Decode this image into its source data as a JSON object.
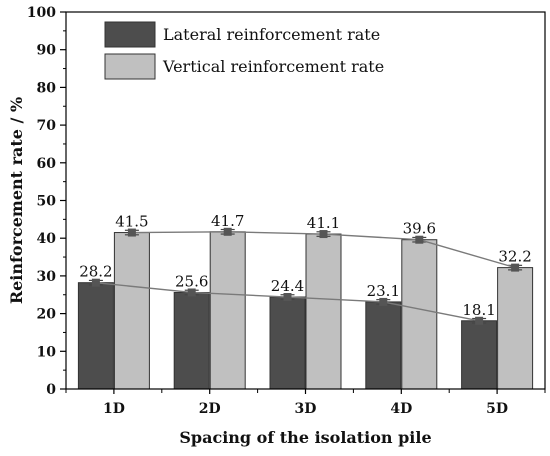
{
  "chart_data": {
    "type": "bar",
    "categories": [
      "1D",
      "2D",
      "3D",
      "4D",
      "5D"
    ],
    "series": [
      {
        "name": "Lateral reinforcement rate",
        "values": [
          28.2,
          25.6,
          24.4,
          23.1,
          18.1
        ],
        "color": "#4d4d4d"
      },
      {
        "name": "Vertical reinforcement rate",
        "values": [
          41.5,
          41.7,
          41.1,
          39.6,
          32.2
        ],
        "color": "#c0c0c0"
      }
    ],
    "data_labels": [
      [
        "28.2",
        "25.6",
        "24.4",
        "23.1",
        "18.1"
      ],
      [
        "41.5",
        "41.7",
        "41.1",
        "39.6",
        "32.2"
      ]
    ],
    "overlay_lines": true,
    "error_bars": true,
    "xlabel": "Spacing of the isolation pile",
    "ylabel": "Reinforcement rate / %",
    "ylim": [
      0,
      100
    ],
    "yticks": [
      0,
      10,
      20,
      30,
      40,
      50,
      60,
      70,
      80,
      90,
      100
    ],
    "legend_position": "top-left",
    "grid": false
  }
}
